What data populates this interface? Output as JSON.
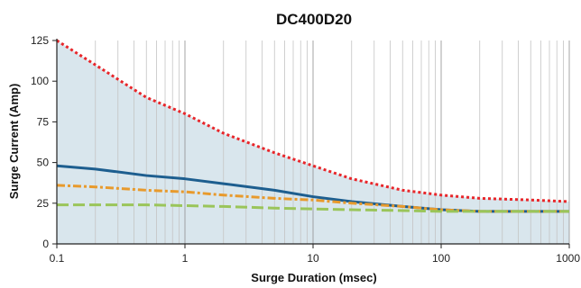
{
  "chart_data": {
    "type": "line",
    "title": "DC400D20",
    "xlabel": "Surge Duration (msec)",
    "ylabel": "Surge Current (Amp)",
    "x_scale": "log",
    "xlim": [
      0.1,
      1000
    ],
    "ylim": [
      0,
      125
    ],
    "x_ticks": [
      0.1,
      1,
      10,
      100,
      1000
    ],
    "x_tick_labels": [
      "0.1",
      "1",
      "10",
      "100",
      "1000"
    ],
    "y_ticks": [
      0,
      25,
      50,
      75,
      100,
      125
    ],
    "y_tick_labels": [
      "0",
      "25",
      "50",
      "75",
      "100",
      "125"
    ],
    "grid": "vertical minor gridlines",
    "shaded_region": {
      "bound_by": "red-dotted",
      "color": "#d9e6ed"
    },
    "series": [
      {
        "key": "red-dotted",
        "style": "dotted",
        "color": "#e8262a",
        "x": [
          0.1,
          0.2,
          0.5,
          1,
          2,
          5,
          10,
          20,
          50,
          100,
          200,
          500,
          1000
        ],
        "y": [
          125,
          110,
          90,
          80,
          68,
          56,
          48,
          40,
          33,
          30,
          28,
          27,
          26
        ]
      },
      {
        "key": "blue-solid",
        "style": "solid",
        "color": "#1d5e8f",
        "x": [
          0.1,
          0.2,
          0.5,
          1,
          2,
          5,
          10,
          20,
          50,
          100,
          200,
          500,
          1000
        ],
        "y": [
          48,
          46,
          42,
          40,
          37,
          33,
          29,
          26,
          23,
          21,
          20,
          20,
          20
        ]
      },
      {
        "key": "orange-dashdot",
        "style": "dashdot",
        "color": "#e89a2c",
        "x": [
          0.1,
          0.2,
          0.5,
          1,
          2,
          5,
          10,
          20,
          50,
          100,
          200,
          500,
          1000
        ],
        "y": [
          36,
          35,
          33,
          32,
          30,
          28,
          27,
          25,
          23,
          21,
          20,
          20,
          20
        ]
      },
      {
        "key": "green-dashed",
        "style": "dashed",
        "color": "#9ac55a",
        "x": [
          0.1,
          0.2,
          0.5,
          1,
          2,
          5,
          10,
          20,
          50,
          100,
          200,
          500,
          1000
        ],
        "y": [
          24,
          24,
          24,
          23.5,
          23,
          22,
          21.5,
          21,
          20.5,
          20,
          20,
          20,
          20
        ]
      }
    ]
  }
}
